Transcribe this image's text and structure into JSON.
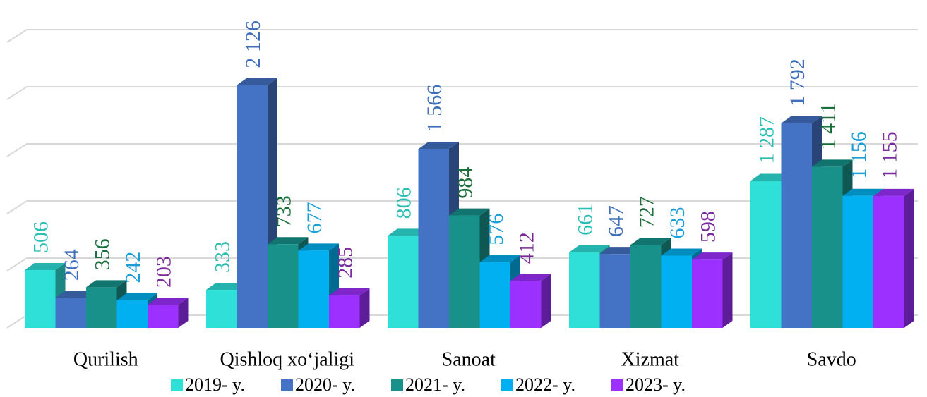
{
  "chart_data": {
    "type": "bar3d",
    "categories": [
      "Qurilish",
      "Qishloq xo‘jaligi",
      "Sanoat",
      "Xizmat",
      "Savdo"
    ],
    "series": [
      {
        "name": "2019- y.",
        "color": "#2ee0d8",
        "label_color": "#2bbfb3",
        "values": [
          506,
          333,
          806,
          661,
          1287
        ],
        "value_labels": [
          "506",
          "333",
          "806",
          "661",
          "1 287"
        ]
      },
      {
        "name": "2020- y.",
        "color": "#4472c4",
        "label_color": "#3f6fba",
        "values": [
          264,
          2126,
          1566,
          647,
          1792
        ],
        "value_labels": [
          "264",
          "2 126",
          "1 566",
          "647",
          "1 792"
        ]
      },
      {
        "name": "2021- y.",
        "color": "#17918a",
        "label_color": "#1a6e3a",
        "values": [
          356,
          733,
          984,
          727,
          1411
        ],
        "value_labels": [
          "356",
          "733",
          "984",
          "727",
          "1 411"
        ]
      },
      {
        "name": "2022- y.",
        "color": "#00b0f0",
        "label_color": "#1aa0d8",
        "values": [
          242,
          677,
          576,
          633,
          1156
        ],
        "value_labels": [
          "242",
          "677",
          "576",
          "633",
          "1 156"
        ]
      },
      {
        "name": "2023- y.",
        "color": "#9b30ff",
        "label_color": "#7a2a9a",
        "values": [
          203,
          285,
          412,
          598,
          1155
        ],
        "value_labels": [
          "203",
          "285",
          "412",
          "598",
          "1 155"
        ]
      }
    ],
    "ylim": [
      0,
      2500
    ],
    "yticks": [
      0,
      500,
      1000,
      1500,
      2000,
      2500
    ],
    "grid": true
  }
}
